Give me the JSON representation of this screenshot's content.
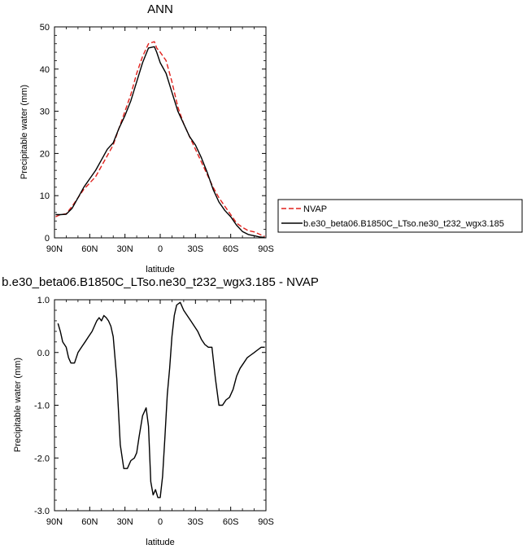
{
  "chart_data": [
    {
      "type": "line",
      "title": "ANN",
      "xlabel": "latitude",
      "ylabel": "Precipitable water (mm)",
      "xlim": [
        90,
        -90
      ],
      "ylim": [
        0,
        50
      ],
      "x_tick_values": [
        90,
        60,
        30,
        0,
        -30,
        -60,
        -90
      ],
      "x_tick_labels": [
        "90N",
        "60N",
        "30N",
        "0",
        "30S",
        "60S",
        "90S"
      ],
      "y_tick_values": [
        0,
        10,
        20,
        30,
        40,
        50
      ],
      "y_tick_labels": [
        "0",
        "10",
        "20",
        "30",
        "40",
        "50"
      ],
      "legend_position": "right",
      "series": [
        {
          "name": "NVAP",
          "color": "#e0201b",
          "dash": "dashed",
          "x": [
            89,
            85,
            80,
            75,
            70,
            65,
            60,
            55,
            50,
            45,
            40,
            35,
            30,
            25,
            20,
            15,
            10,
            5,
            3,
            0,
            -5,
            -10,
            -15,
            -20,
            -25,
            -30,
            -35,
            -40,
            -45,
            -50,
            -55,
            -60,
            -65,
            -70,
            -75,
            -80,
            -85,
            -89
          ],
          "y": [
            5,
            5.5,
            5.7,
            7.5,
            9.5,
            11.5,
            13,
            14.5,
            17,
            19.5,
            22,
            26,
            30,
            34,
            39,
            43,
            46,
            46.5,
            45,
            44,
            42,
            37,
            31,
            27,
            24,
            21,
            18,
            15,
            12,
            9.5,
            7.5,
            5.5,
            3.5,
            2.5,
            1.7,
            1.4,
            0.8,
            0.3
          ]
        },
        {
          "name": "b.e30_beta06.B1850C_LTso.ne30_t232_wgx3.185",
          "color": "#000000",
          "dash": "solid",
          "x": [
            89,
            85,
            80,
            75,
            70,
            65,
            60,
            55,
            50,
            45,
            40,
            35,
            30,
            25,
            20,
            15,
            10,
            5,
            3,
            0,
            -5,
            -10,
            -15,
            -20,
            -25,
            -30,
            -35,
            -40,
            -45,
            -50,
            -55,
            -60,
            -65,
            -70,
            -75,
            -80,
            -85,
            -89
          ],
          "y": [
            5.5,
            5.5,
            5.6,
            7,
            9.5,
            12,
            14,
            16,
            18.5,
            21,
            22.5,
            26,
            29,
            32.5,
            37,
            41.5,
            45,
            45.3,
            44,
            41.5,
            39,
            34.5,
            30,
            27,
            24,
            22,
            19,
            15.5,
            11.5,
            8.5,
            6.5,
            5,
            3,
            1.5,
            0.8,
            0.5,
            0.2,
            0.1
          ]
        }
      ]
    },
    {
      "type": "line",
      "title": "b.e30_beta06.B1850C_LTso.ne30_t232_wgx3.185 - NVAP",
      "xlabel": "latitude",
      "ylabel": "Precipitable water (mm)",
      "xlim": [
        90,
        -90
      ],
      "ylim": [
        -3,
        1
      ],
      "x_tick_values": [
        90,
        60,
        30,
        0,
        -30,
        -60,
        -90
      ],
      "x_tick_labels": [
        "90N",
        "60N",
        "30N",
        "0",
        "30S",
        "60S",
        "90S"
      ],
      "y_tick_values": [
        1,
        0,
        -1,
        -2,
        -3
      ],
      "y_tick_labels": [
        "1.0",
        "0.0",
        "-1.0",
        "-2.0",
        "-3.0"
      ],
      "series": [
        {
          "color": "#000000",
          "x": [
            87,
            85,
            83,
            80,
            78,
            76,
            73,
            70,
            67,
            64,
            61,
            58,
            56,
            54,
            52,
            50,
            48,
            46,
            44,
            42,
            40,
            37,
            34,
            31,
            28,
            25,
            22,
            20,
            18,
            15,
            12,
            10,
            8,
            6,
            4,
            2,
            0,
            -2,
            -4,
            -6,
            -8,
            -10,
            -12,
            -14,
            -17,
            -20,
            -23,
            -26,
            -29,
            -32,
            -35,
            -38,
            -41,
            -44,
            -47,
            -50,
            -53,
            -56,
            -59,
            -62,
            -65,
            -68,
            -71,
            -74,
            -77,
            -80,
            -83,
            -86,
            -89
          ],
          "y": [
            0.55,
            0.4,
            0.2,
            0.1,
            -0.1,
            -0.2,
            -0.2,
            0,
            0.1,
            0.2,
            0.3,
            0.4,
            0.5,
            0.6,
            0.66,
            0.6,
            0.7,
            0.66,
            0.6,
            0.5,
            0.3,
            -0.5,
            -1.75,
            -2.2,
            -2.2,
            -2.05,
            -2,
            -1.9,
            -1.6,
            -1.2,
            -1.05,
            -1.4,
            -2.45,
            -2.7,
            -2.6,
            -2.75,
            -2.75,
            -2.35,
            -1.6,
            -0.8,
            -0.3,
            0.3,
            0.7,
            0.9,
            0.95,
            0.8,
            0.7,
            0.6,
            0.5,
            0.4,
            0.25,
            0.15,
            0.1,
            0.1,
            -0.5,
            -1,
            -1,
            -0.9,
            -0.85,
            -0.7,
            -0.45,
            -0.3,
            -0.2,
            -0.1,
            -0.05,
            0,
            0.05,
            0.1,
            0.1
          ]
        }
      ]
    }
  ]
}
